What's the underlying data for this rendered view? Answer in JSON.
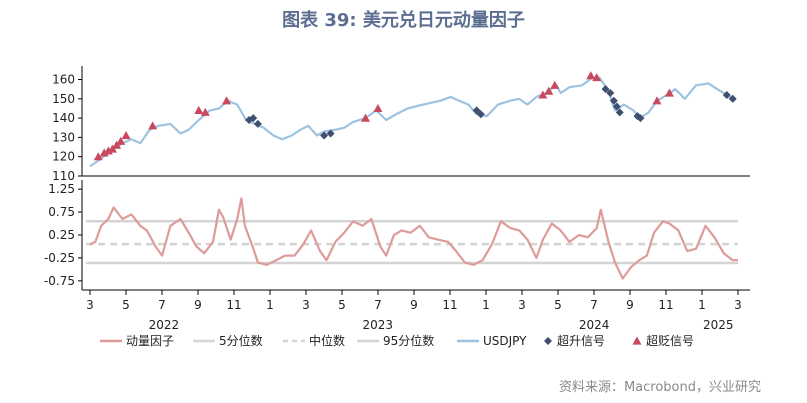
{
  "title": "图表 39: 美元兑日元动量因子",
  "source": "资料来源：Macrobond，兴业研究",
  "colors": {
    "usdjpy": "#9dc3e1",
    "momentum": "#dd9b99",
    "p5": "#d4d4d4",
    "median": "#d4d4d4",
    "p95": "#d4d4d4",
    "buy_signal": "#3f4f6e",
    "sell_signal": "#c94a5f",
    "axis": "#000000"
  },
  "legend": [
    {
      "key": "momentum",
      "label": "动量因子",
      "style": "line"
    },
    {
      "key": "p5",
      "label": "5分位数",
      "style": "line"
    },
    {
      "key": "median",
      "label": "中位数",
      "style": "dash"
    },
    {
      "key": "p95",
      "label": "95分位数",
      "style": "line"
    },
    {
      "key": "usdjpy",
      "label": "USDJPY",
      "style": "line"
    },
    {
      "key": "buy_signal",
      "label": "超升信号",
      "style": "diamond"
    },
    {
      "key": "sell_signal",
      "label": "超贬信号",
      "style": "triangle"
    }
  ],
  "chart_data": [
    {
      "type": "line",
      "x_axis": {
        "start": "2022-03",
        "end": "2025-03",
        "tick_labels": [
          "3",
          "5",
          "7",
          "9",
          "11",
          "1",
          "3",
          "5",
          "7",
          "9",
          "11",
          "1",
          "3",
          "5",
          "7",
          "9",
          "11",
          "1",
          "3"
        ],
        "year_labels": [
          "2022",
          "2023",
          "2024",
          "2025"
        ]
      },
      "ylim": [
        110,
        167
      ],
      "yticks": [
        "110",
        "120",
        "130",
        "140",
        "150",
        "160"
      ],
      "series": [
        {
          "name": "USDJPY",
          "points": [
            [
              "2022-03-01",
              115
            ],
            [
              "2022-03-20",
              119
            ],
            [
              "2022-04-05",
              123
            ],
            [
              "2022-04-25",
              127
            ],
            [
              "2022-05-10",
              129
            ],
            [
              "2022-05-25",
              127
            ],
            [
              "2022-06-10",
              134
            ],
            [
              "2022-06-25",
              136
            ],
            [
              "2022-07-15",
              137
            ],
            [
              "2022-08-01",
              132
            ],
            [
              "2022-08-15",
              134
            ],
            [
              "2022-09-01",
              139
            ],
            [
              "2022-09-20",
              144
            ],
            [
              "2022-10-05",
              145
            ],
            [
              "2022-10-20",
              149
            ],
            [
              "2022-11-05",
              147
            ],
            [
              "2022-11-20",
              139
            ],
            [
              "2022-12-05",
              137
            ],
            [
              "2022-12-20",
              135
            ],
            [
              "2023-01-05",
              131
            ],
            [
              "2023-01-20",
              129
            ],
            [
              "2023-02-05",
              131
            ],
            [
              "2023-02-20",
              134
            ],
            [
              "2023-03-05",
              136
            ],
            [
              "2023-03-20",
              131
            ],
            [
              "2023-04-01",
              133
            ],
            [
              "2023-04-20",
              134
            ],
            [
              "2023-05-05",
              135
            ],
            [
              "2023-05-20",
              138
            ],
            [
              "2023-06-10",
              140
            ],
            [
              "2023-06-28",
              144
            ],
            [
              "2023-07-15",
              139
            ],
            [
              "2023-08-01",
              142
            ],
            [
              "2023-08-20",
              145
            ],
            [
              "2023-09-15",
              147
            ],
            [
              "2023-10-15",
              149
            ],
            [
              "2023-11-01",
              151
            ],
            [
              "2023-11-15",
              149
            ],
            [
              "2023-12-01",
              147
            ],
            [
              "2023-12-15",
              142
            ],
            [
              "2024-01-01",
              141
            ],
            [
              "2024-01-20",
              147
            ],
            [
              "2024-02-10",
              149
            ],
            [
              "2024-02-25",
              150
            ],
            [
              "2024-03-10",
              147
            ],
            [
              "2024-03-25",
              151
            ],
            [
              "2024-04-10",
              153
            ],
            [
              "2024-04-28",
              157
            ],
            [
              "2024-05-05",
              153
            ],
            [
              "2024-05-20",
              156
            ],
            [
              "2024-06-10",
              157
            ],
            [
              "2024-06-28",
              161
            ],
            [
              "2024-07-10",
              161
            ],
            [
              "2024-07-25",
              154
            ],
            [
              "2024-08-05",
              144
            ],
            [
              "2024-08-20",
              147
            ],
            [
              "2024-09-05",
              144
            ],
            [
              "2024-09-16",
              140
            ],
            [
              "2024-10-01",
              143
            ],
            [
              "2024-10-15",
              149
            ],
            [
              "2024-11-01",
              152
            ],
            [
              "2024-11-15",
              155
            ],
            [
              "2024-12-01",
              150
            ],
            [
              "2024-12-20",
              157
            ],
            [
              "2025-01-10",
              158
            ],
            [
              "2025-01-25",
              155
            ],
            [
              "2025-02-10",
              152
            ],
            [
              "2025-02-25",
              149
            ]
          ]
        },
        {
          "name": "超升信号",
          "points": [
            [
              "2022-11-25",
              139
            ],
            [
              "2022-12-02",
              140
            ],
            [
              "2022-12-10",
              137
            ],
            [
              "2023-04-01",
              131
            ],
            [
              "2023-04-12",
              132
            ],
            [
              "2023-12-15",
              144
            ],
            [
              "2023-12-22",
              142
            ],
            [
              "2024-07-20",
              155
            ],
            [
              "2024-07-28",
              153
            ],
            [
              "2024-08-03",
              149
            ],
            [
              "2024-08-08",
              146
            ],
            [
              "2024-08-13",
              143
            ],
            [
              "2024-09-12",
              141
            ],
            [
              "2024-09-17",
              140
            ],
            [
              "2025-02-10",
              152
            ],
            [
              "2025-02-20",
              150
            ]
          ]
        },
        {
          "name": "超贬信号",
          "points": [
            [
              "2022-03-15",
              120
            ],
            [
              "2022-03-25",
              122
            ],
            [
              "2022-04-01",
              123
            ],
            [
              "2022-04-08",
              124
            ],
            [
              "2022-04-15",
              126
            ],
            [
              "2022-04-22",
              128
            ],
            [
              "2022-05-01",
              131
            ],
            [
              "2022-06-15",
              136
            ],
            [
              "2022-09-01",
              144
            ],
            [
              "2022-09-12",
              143
            ],
            [
              "2022-10-18",
              149
            ],
            [
              "2023-06-10",
              140
            ],
            [
              "2023-07-01",
              145
            ],
            [
              "2024-04-05",
              152
            ],
            [
              "2024-04-15",
              154
            ],
            [
              "2024-04-25",
              157
            ],
            [
              "2024-06-25",
              162
            ],
            [
              "2024-07-05",
              161
            ],
            [
              "2024-10-15",
              149
            ],
            [
              "2024-11-05",
              153
            ]
          ]
        }
      ]
    },
    {
      "type": "line",
      "x_axis": {
        "start": "2022-03",
        "end": "2025-03"
      },
      "ylim": [
        -0.95,
        1.45
      ],
      "yticks": [
        "1.25",
        "0.75",
        "0.25",
        "-0.25",
        "-0.75"
      ],
      "reference_lines": {
        "p95": 0.55,
        "median": 0.05,
        "p5": -0.36
      },
      "series": [
        {
          "name": "动量因子",
          "points": [
            [
              "2022-03-01",
              0.05
            ],
            [
              "2022-03-10",
              0.1
            ],
            [
              "2022-03-20",
              0.45
            ],
            [
              "2022-04-01",
              0.6
            ],
            [
              "2022-04-10",
              0.85
            ],
            [
              "2022-04-25",
              0.6
            ],
            [
              "2022-05-10",
              0.7
            ],
            [
              "2022-05-25",
              0.45
            ],
            [
              "2022-06-05",
              0.35
            ],
            [
              "2022-06-20",
              0.0
            ],
            [
              "2022-07-01",
              -0.2
            ],
            [
              "2022-07-15",
              0.45
            ],
            [
              "2022-08-01",
              0.6
            ],
            [
              "2022-08-15",
              0.3
            ],
            [
              "2022-08-28",
              0.0
            ],
            [
              "2022-09-10",
              -0.15
            ],
            [
              "2022-09-25",
              0.1
            ],
            [
              "2022-10-05",
              0.8
            ],
            [
              "2022-10-12",
              0.65
            ],
            [
              "2022-10-25",
              0.15
            ],
            [
              "2022-11-05",
              0.6
            ],
            [
              "2022-11-12",
              1.05
            ],
            [
              "2022-11-18",
              0.45
            ],
            [
              "2022-12-01",
              0.0
            ],
            [
              "2022-12-10",
              -0.35
            ],
            [
              "2022-12-25",
              -0.4
            ],
            [
              "2023-01-10",
              -0.3
            ],
            [
              "2023-01-25",
              -0.2
            ],
            [
              "2023-02-10",
              -0.2
            ],
            [
              "2023-02-25",
              0.05
            ],
            [
              "2023-03-10",
              0.35
            ],
            [
              "2023-03-25",
              -0.1
            ],
            [
              "2023-04-05",
              -0.3
            ],
            [
              "2023-04-20",
              0.1
            ],
            [
              "2023-05-05",
              0.3
            ],
            [
              "2023-05-20",
              0.55
            ],
            [
              "2023-06-05",
              0.45
            ],
            [
              "2023-06-20",
              0.6
            ],
            [
              "2023-07-05",
              0.0
            ],
            [
              "2023-07-15",
              -0.2
            ],
            [
              "2023-07-28",
              0.25
            ],
            [
              "2023-08-10",
              0.35
            ],
            [
              "2023-08-25",
              0.3
            ],
            [
              "2023-09-10",
              0.45
            ],
            [
              "2023-09-25",
              0.2
            ],
            [
              "2023-10-10",
              0.15
            ],
            [
              "2023-10-28",
              0.1
            ],
            [
              "2023-11-10",
              -0.1
            ],
            [
              "2023-11-25",
              -0.35
            ],
            [
              "2023-12-10",
              -0.4
            ],
            [
              "2023-12-25",
              -0.3
            ],
            [
              "2024-01-10",
              0.05
            ],
            [
              "2024-01-25",
              0.55
            ],
            [
              "2024-02-10",
              0.4
            ],
            [
              "2024-02-25",
              0.35
            ],
            [
              "2024-03-10",
              0.15
            ],
            [
              "2024-03-25",
              -0.25
            ],
            [
              "2024-04-05",
              0.15
            ],
            [
              "2024-04-20",
              0.5
            ],
            [
              "2024-05-05",
              0.35
            ],
            [
              "2024-05-20",
              0.1
            ],
            [
              "2024-06-05",
              0.25
            ],
            [
              "2024-06-20",
              0.2
            ],
            [
              "2024-07-05",
              0.4
            ],
            [
              "2024-07-12",
              0.8
            ],
            [
              "2024-07-25",
              0.1
            ],
            [
              "2024-08-05",
              -0.35
            ],
            [
              "2024-08-18",
              -0.7
            ],
            [
              "2024-09-01",
              -0.45
            ],
            [
              "2024-09-15",
              -0.3
            ],
            [
              "2024-09-28",
              -0.2
            ],
            [
              "2024-10-10",
              0.3
            ],
            [
              "2024-10-25",
              0.55
            ],
            [
              "2024-11-05",
              0.5
            ],
            [
              "2024-11-20",
              0.35
            ],
            [
              "2024-12-05",
              -0.1
            ],
            [
              "2024-12-20",
              -0.05
            ],
            [
              "2025-01-05",
              0.45
            ],
            [
              "2025-01-20",
              0.2
            ],
            [
              "2025-02-05",
              -0.15
            ],
            [
              "2025-02-20",
              -0.3
            ],
            [
              "2025-03-01",
              -0.3
            ]
          ]
        }
      ]
    }
  ]
}
